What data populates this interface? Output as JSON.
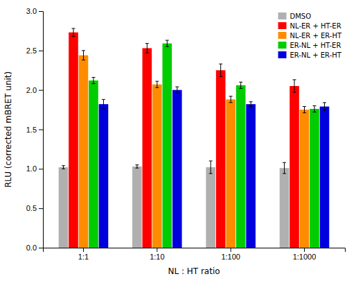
{
  "chart_data": {
    "type": "bar",
    "categories": [
      "1:1",
      "1:10",
      "1:100",
      "1:1000"
    ],
    "series": [
      {
        "name": "DMSO",
        "color": "#b0b0b0",
        "values": [
          1.02,
          1.03,
          1.02,
          1.01
        ],
        "errors": [
          0.02,
          0.02,
          0.08,
          0.07
        ]
      },
      {
        "name": "NL-ER + HT-ER",
        "color": "#ff0000",
        "values": [
          2.73,
          2.53,
          2.25,
          2.05
        ],
        "errors": [
          0.05,
          0.06,
          0.08,
          0.08
        ]
      },
      {
        "name": "NL-ER + ER-HT",
        "color": "#ff8c00",
        "values": [
          2.44,
          2.07,
          1.88,
          1.75
        ],
        "errors": [
          0.06,
          0.04,
          0.04,
          0.04
        ]
      },
      {
        "name": "ER-NL + HT-ER",
        "color": "#00cc00",
        "values": [
          2.12,
          2.59,
          2.06,
          1.76
        ],
        "errors": [
          0.04,
          0.04,
          0.04,
          0.04
        ]
      },
      {
        "name": "ER-NL + ER-HT",
        "color": "#0000dd",
        "values": [
          1.82,
          2.0,
          1.82,
          1.79
        ],
        "errors": [
          0.06,
          0.04,
          0.03,
          0.05
        ]
      }
    ],
    "xlabel": "NL : HT ratio",
    "ylabel": "RLU (corrected mBRET unit)",
    "ylim": [
      0.0,
      3.0
    ],
    "yticks": [
      {
        "value": 0.0,
        "label": "0.0"
      },
      0.5,
      {
        "value": 1.0,
        "label": "1.0"
      },
      1.5,
      {
        "value": 2.0,
        "label": "2.0"
      },
      2.5,
      {
        "value": 3.0,
        "label": "3.0"
      }
    ],
    "grid": false,
    "legend": "upper right"
  }
}
